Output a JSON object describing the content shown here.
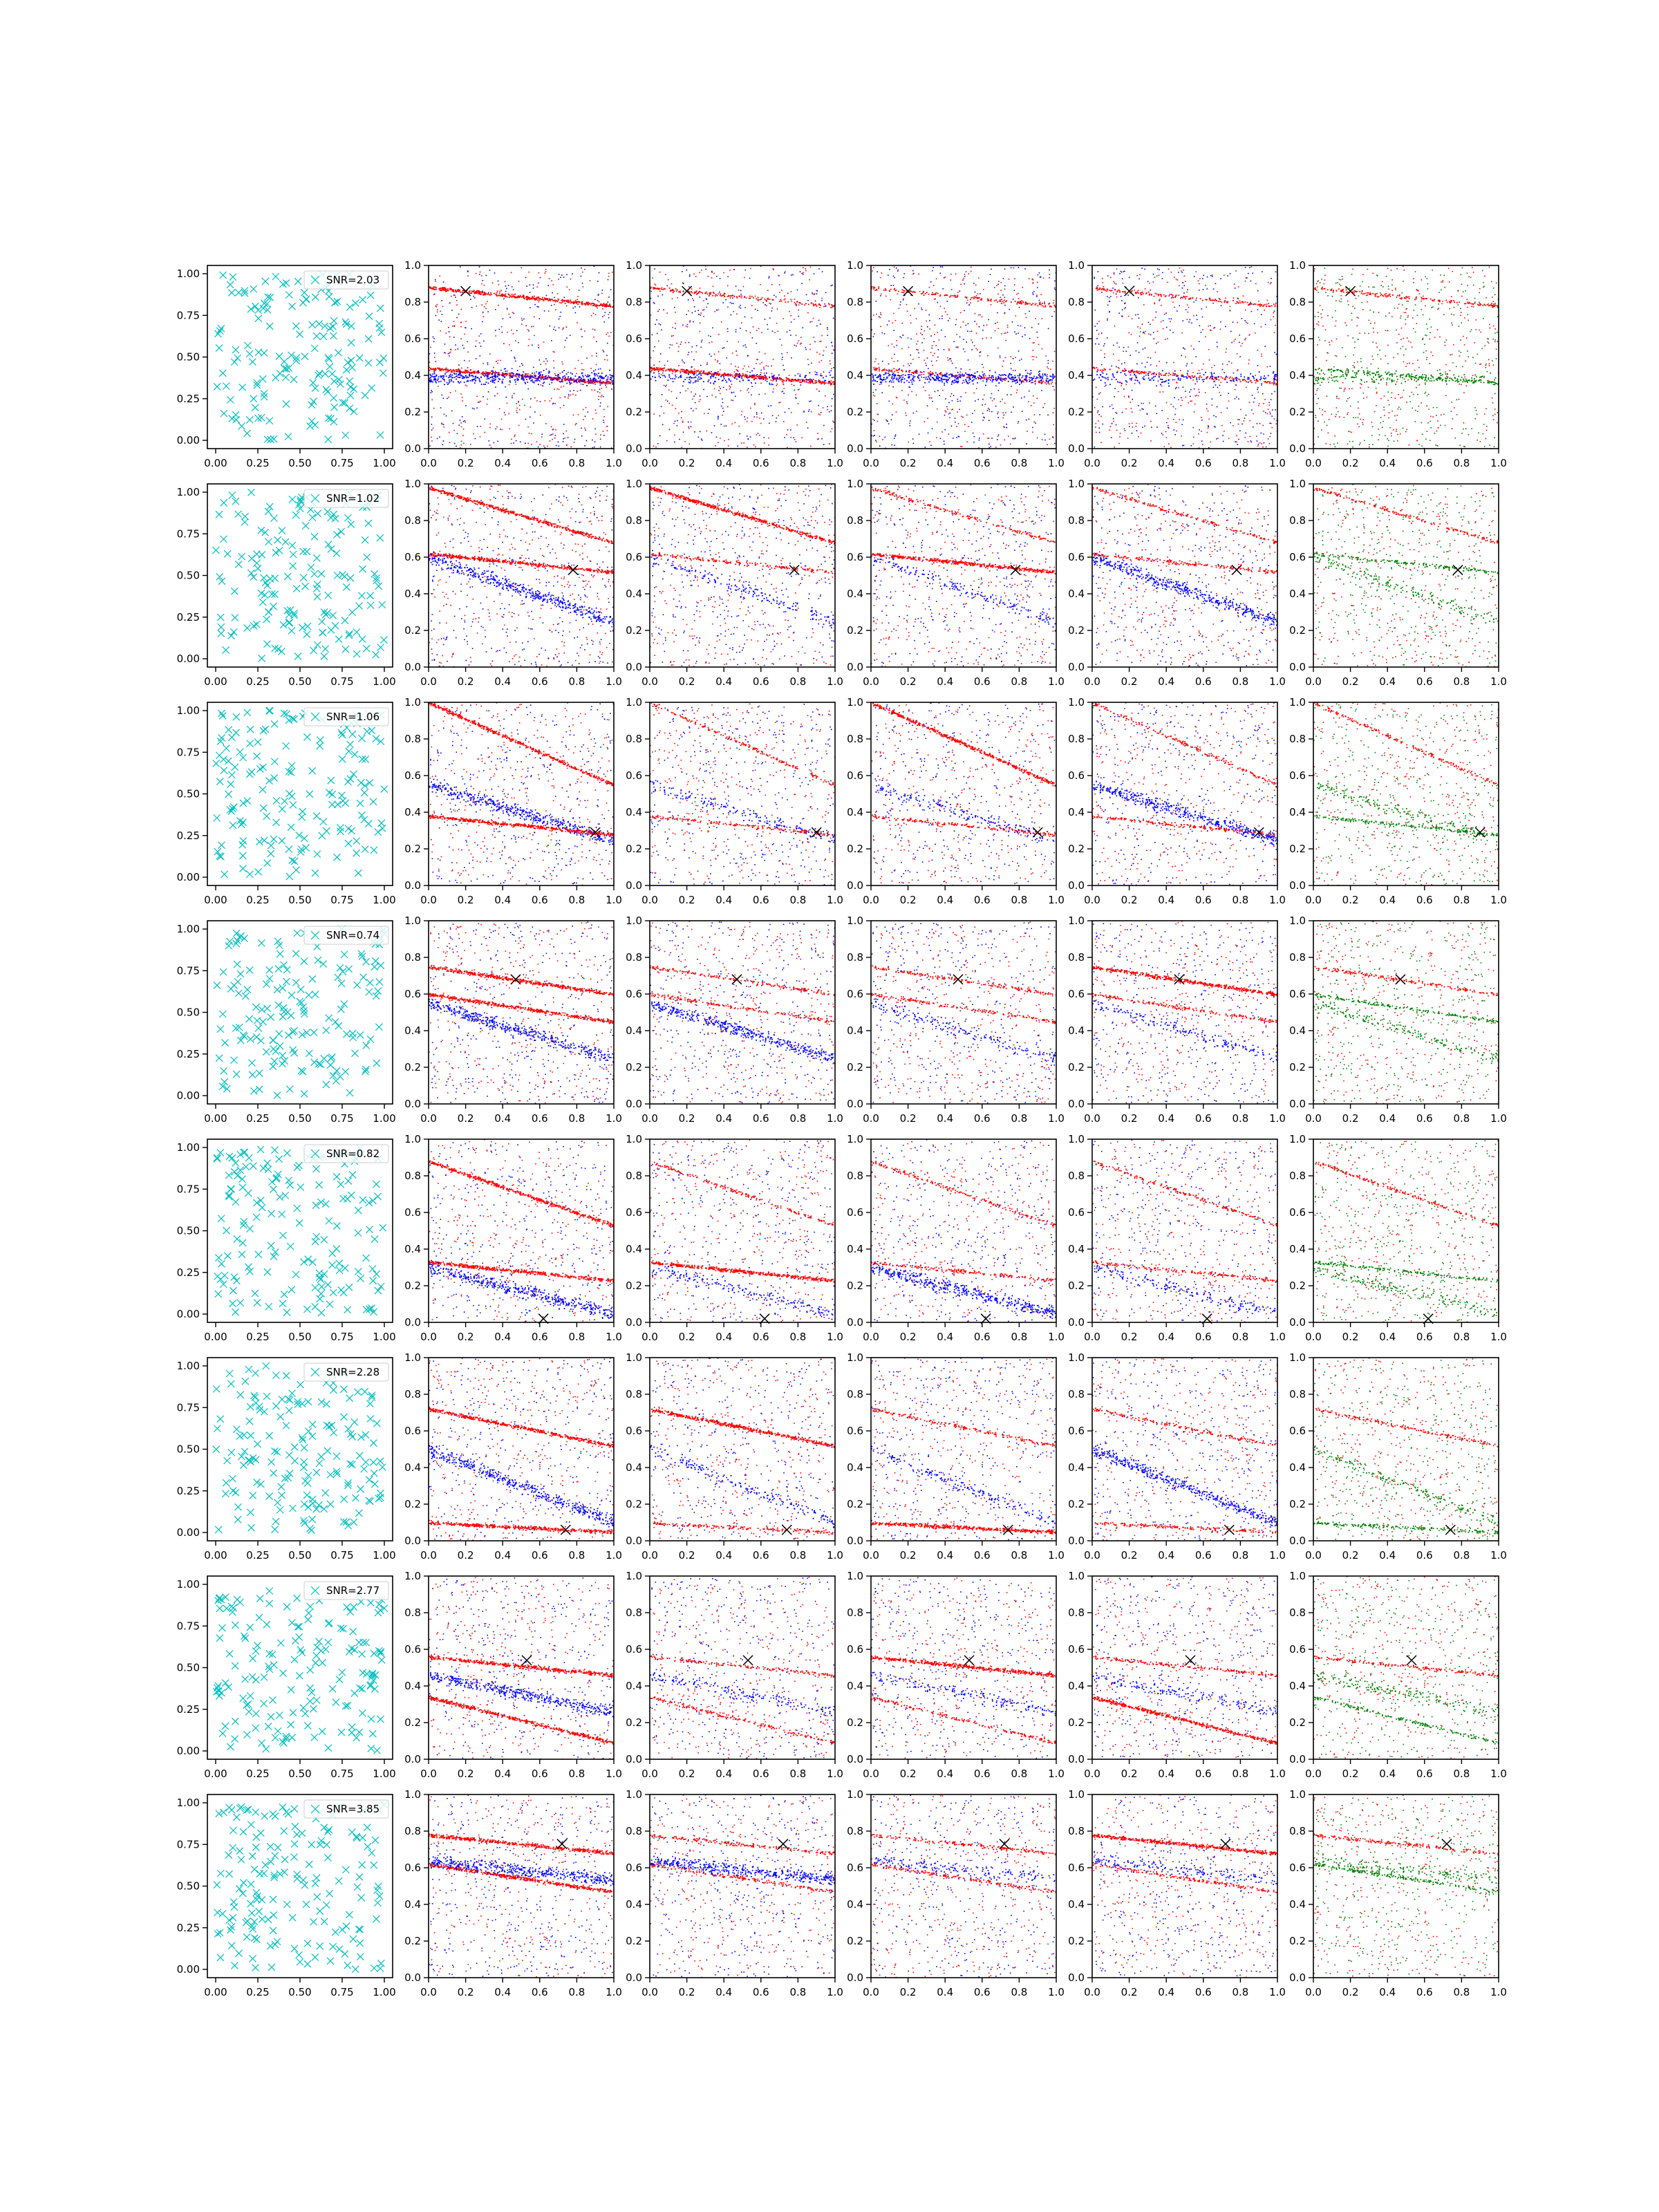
{
  "figure": {
    "layout": {
      "rows": 8,
      "cols": 6
    },
    "colors": {
      "cyan": "#00bfbf",
      "blue": "#0000ff",
      "red": "#ff0000",
      "green": "#008000",
      "marker": "#000000"
    },
    "ticks": {
      "first_column": [
        "0.00",
        "0.25",
        "0.50",
        "0.75",
        "1.00"
      ],
      "other_columns_x": [
        "0.0",
        "0.2",
        "0.4",
        "0.6",
        "0.8",
        "1.0"
      ],
      "other_columns_y": [
        "0.0",
        "0.2",
        "0.4",
        "0.6",
        "0.8",
        "1.0"
      ]
    }
  },
  "chart_data": [
    {
      "type": "scatter_grid",
      "description_of_columns": [
        "positions (x markers)",
        "red/blue scatter",
        "red/blue scatter",
        "red/blue scatter",
        "red/blue scatter",
        "red/green scatter"
      ],
      "xlim": [
        0,
        1
      ],
      "ylim": [
        0,
        1
      ],
      "grid": false,
      "rows": [
        {
          "legend": "SNR=2.03",
          "snr": 2.03,
          "marker": [
            0.2,
            0.86
          ],
          "bands": [
            {
              "y0": 0.88,
              "slope": -0.1,
              "col": "red"
            },
            {
              "y0": 0.44,
              "slope": -0.08,
              "col": "red"
            },
            {
              "y0": 0.39,
              "slope": 0.0,
              "col": "blue"
            }
          ]
        },
        {
          "legend": "SNR=1.02",
          "snr": 1.02,
          "marker": [
            0.78,
            0.53
          ],
          "bands": [
            {
              "y0": 0.98,
              "slope": -0.3,
              "col": "red"
            },
            {
              "y0": 0.62,
              "slope": -0.1,
              "col": "red"
            },
            {
              "y0": 0.6,
              "slope": -0.35,
              "col": "blue"
            }
          ]
        },
        {
          "legend": "SNR=1.06",
          "snr": 1.06,
          "marker": [
            0.9,
            0.29
          ],
          "bands": [
            {
              "y0": 1.0,
              "slope": -0.45,
              "col": "red"
            },
            {
              "y0": 0.55,
              "slope": -0.3,
              "col": "blue"
            },
            {
              "y0": 0.38,
              "slope": -0.1,
              "col": "red"
            }
          ]
        },
        {
          "legend": "SNR=0.74",
          "snr": 0.74,
          "marker": [
            0.47,
            0.68
          ],
          "bands": [
            {
              "y0": 0.75,
              "slope": -0.15,
              "col": "red"
            },
            {
              "y0": 0.6,
              "slope": -0.15,
              "col": "red"
            },
            {
              "y0": 0.55,
              "slope": -0.3,
              "col": "blue"
            }
          ]
        },
        {
          "legend": "SNR=0.82",
          "snr": 0.82,
          "marker": [
            0.62,
            0.02
          ],
          "bands": [
            {
              "y0": 0.88,
              "slope": -0.35,
              "col": "red"
            },
            {
              "y0": 0.33,
              "slope": -0.1,
              "col": "red"
            },
            {
              "y0": 0.3,
              "slope": -0.25,
              "col": "blue"
            }
          ]
        },
        {
          "legend": "SNR=2.28",
          "snr": 2.28,
          "marker": [
            0.74,
            0.06
          ],
          "bands": [
            {
              "y0": 0.72,
              "slope": -0.2,
              "col": "red"
            },
            {
              "y0": 0.1,
              "slope": -0.05,
              "col": "red"
            },
            {
              "y0": 0.5,
              "slope": -0.4,
              "col": "blue"
            }
          ]
        },
        {
          "legend": "SNR=2.77",
          "snr": 2.77,
          "marker": [
            0.53,
            0.54
          ],
          "bands": [
            {
              "y0": 0.56,
              "slope": -0.1,
              "col": "red"
            },
            {
              "y0": 0.34,
              "slope": -0.25,
              "col": "red"
            },
            {
              "y0": 0.46,
              "slope": -0.2,
              "col": "blue"
            }
          ]
        },
        {
          "legend": "SNR=3.85",
          "snr": 3.85,
          "marker": [
            0.72,
            0.73
          ],
          "bands": [
            {
              "y0": 0.78,
              "slope": -0.1,
              "col": "red"
            },
            {
              "y0": 0.62,
              "slope": -0.15,
              "col": "red"
            },
            {
              "y0": 0.64,
              "slope": -0.1,
              "col": "blue"
            }
          ]
        }
      ]
    }
  ]
}
